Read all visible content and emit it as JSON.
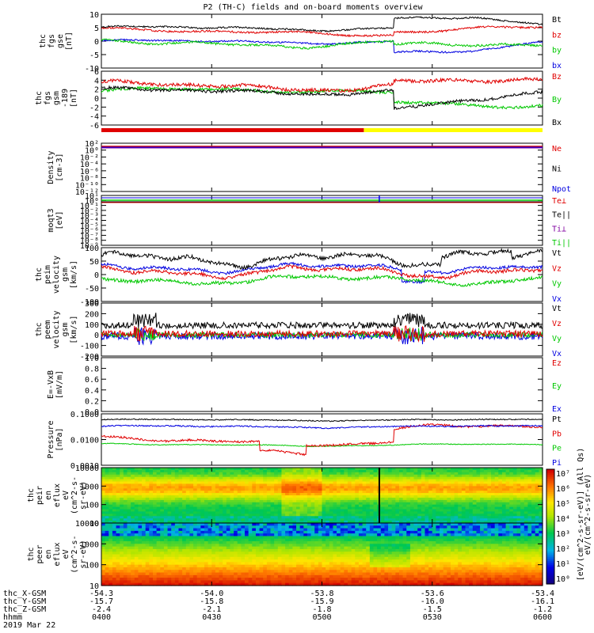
{
  "title": "P2 (TH-C) fields and on-board moments overview",
  "colors": {
    "black": "#000000",
    "red": "#e00000",
    "green": "#00c800",
    "blue": "#0000e0",
    "yellow": "#ffff00",
    "purple": "#8000a0"
  },
  "chart_data": [
    {
      "id": "fgs_gse",
      "type": "line",
      "ylabel": [
        "thc",
        "fgs",
        "gse",
        "[nT]"
      ],
      "ylim": [
        -10,
        10
      ],
      "yticks": [
        "10",
        "5",
        "0",
        "-5",
        "-10"
      ],
      "series": [
        {
          "name": "Bt",
          "color": "black"
        },
        {
          "name": "bz",
          "color": "red"
        },
        {
          "name": "by",
          "color": "green"
        },
        {
          "name": "bx",
          "color": "blue"
        }
      ]
    },
    {
      "id": "fgs_gsm",
      "type": "line",
      "ylabel": [
        "thc",
        "fgs",
        "gsm",
        "-189",
        "[nT]"
      ],
      "ylim": [
        -7,
        6
      ],
      "yticks": [
        "6",
        "4",
        "2",
        "0",
        "-2",
        "-4",
        "-6"
      ],
      "series": [
        {
          "name": "Bz",
          "color": "red"
        },
        {
          "name": "By",
          "color": "green"
        },
        {
          "name": "Bx",
          "color": "black"
        }
      ]
    },
    {
      "id": "density",
      "type": "line",
      "ylabel": [
        "Density",
        "[cm-3]"
      ],
      "scale": "log",
      "yticks": [
        "10²",
        "10⁰",
        "10⁻²",
        "10⁻⁴",
        "10⁻⁶",
        "10⁻⁸",
        "10⁻¹⁰",
        "10⁻¹²"
      ],
      "series": [
        {
          "name": "Ne",
          "color": "red"
        },
        {
          "name": "Ni",
          "color": "black"
        },
        {
          "name": "Npot",
          "color": "blue"
        }
      ]
    },
    {
      "id": "temperature",
      "type": "line",
      "ylabel": [
        "moqt3",
        "[eV]"
      ],
      "scale": "log",
      "yticks": [
        "10¹",
        "10⁰",
        "10⁻¹",
        "10⁻²",
        "10⁻³",
        "10⁻⁴",
        "10⁻⁵",
        "10⁻⁶",
        "10⁻⁷",
        "10⁻⁸",
        "10⁻⁹"
      ],
      "series": [
        {
          "name": "Te⊥",
          "color": "red"
        },
        {
          "name": "Te||",
          "color": "black"
        },
        {
          "name": "Ti⊥",
          "color": "purple"
        },
        {
          "name": "Ti||",
          "color": "green"
        }
      ]
    },
    {
      "id": "peim_velocity",
      "type": "line",
      "ylabel": [
        "thc",
        "peim",
        "velocity",
        "gsm",
        "[km/s]"
      ],
      "ylim": [
        -100,
        100
      ],
      "yticks": [
        "100",
        "50",
        "0",
        "-50",
        "-100"
      ],
      "series": [
        {
          "name": "Vt",
          "color": "black"
        },
        {
          "name": "Vz",
          "color": "red"
        },
        {
          "name": "Vy",
          "color": "green"
        },
        {
          "name": "Vx",
          "color": "blue"
        }
      ]
    },
    {
      "id": "peem_velocity",
      "type": "line",
      "ylabel": [
        "thc",
        "peem",
        "velocity",
        "gsm",
        "[km/s]"
      ],
      "ylim": [
        -200,
        300
      ],
      "yticks": [
        "300",
        "200",
        "100",
        "0",
        "-100",
        "-200"
      ],
      "series": [
        {
          "name": "Vt",
          "color": "black"
        },
        {
          "name": "Vz",
          "color": "red"
        },
        {
          "name": "Vy",
          "color": "green"
        },
        {
          "name": "Vx",
          "color": "blue"
        }
      ]
    },
    {
      "id": "efield",
      "type": "line",
      "ylabel": [
        "E=-VxB",
        "[mV/m]"
      ],
      "ylim": [
        0,
        1
      ],
      "yticks": [
        "1.0",
        "0.8",
        "0.6",
        "0.4",
        "0.2",
        "0.0"
      ],
      "series": [
        {
          "name": "Ez",
          "color": "red"
        },
        {
          "name": "Ey",
          "color": "green"
        },
        {
          "name": "Ex",
          "color": "blue"
        }
      ]
    },
    {
      "id": "pressure",
      "type": "line",
      "ylabel": [
        "Pressure",
        "[nPa]"
      ],
      "scale": "log",
      "yticks": [
        "0.1000",
        "0.0100",
        "0.0010"
      ],
      "series": [
        {
          "name": "Pt",
          "color": "black"
        },
        {
          "name": "Pb",
          "color": "red"
        },
        {
          "name": "Pe",
          "color": "green"
        },
        {
          "name": "Pi",
          "color": "blue"
        }
      ]
    },
    {
      "id": "peir_spec",
      "type": "heatmap",
      "ylabel": [
        "thc",
        "peir",
        "en",
        "eflux",
        "eV",
        "(cm^2-s-",
        "sr-eV)"
      ],
      "scale": "log",
      "yticks": [
        "10000",
        "1000",
        "100",
        "10"
      ]
    },
    {
      "id": "peer_spec",
      "type": "heatmap",
      "ylabel": [
        "thc",
        "peer",
        "en",
        "eflux",
        "eV",
        "(cm^2-s-",
        "sr-eV)"
      ],
      "scale": "log",
      "yticks": [
        "10000",
        "1000",
        "100",
        "10"
      ]
    }
  ],
  "bar_ticks": [
    "10⁷",
    "10⁶",
    "10⁵",
    "10⁴",
    "10³",
    "10²",
    "10¹",
    "10⁰"
  ],
  "bar_label": "[eV/(cm^2-s-sr-eV)] (All Qs)",
  "bar_label2": "eV/(cm^2-s-sr-eV)",
  "xaxis": {
    "rows": [
      {
        "label": "thc_X-GSM",
        "values": [
          "-54.3",
          "-54.0",
          "-53.8",
          "-53.6",
          "-53.4"
        ]
      },
      {
        "label": "thc_Y-GSM",
        "values": [
          "-15.7",
          "-15.8",
          "-15.9",
          "-16.0",
          "-16.1"
        ]
      },
      {
        "label": "thc_Z-GSM",
        "values": [
          "-2.4",
          "-2.1",
          "-1.8",
          "-1.5",
          "-1.2"
        ]
      },
      {
        "label": "hhmm",
        "values": [
          "0400",
          "0430",
          "0500",
          "0530",
          "0600"
        ]
      }
    ],
    "date": "2019 Mar 22"
  }
}
